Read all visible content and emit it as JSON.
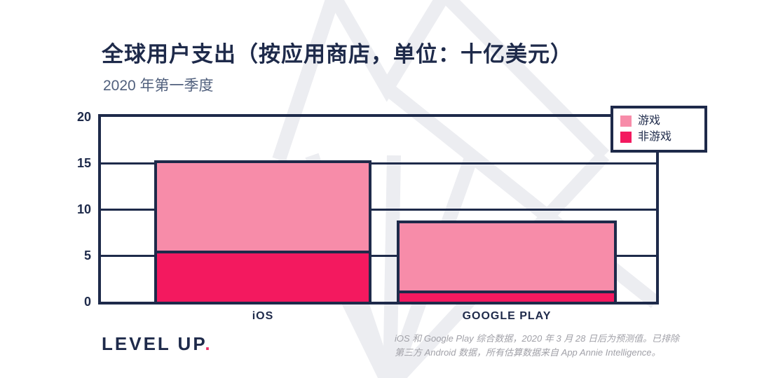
{
  "chart_data": {
    "type": "bar",
    "stacked": true,
    "title": "全球用户支出（按应用商店，单位：十亿美元）",
    "subtitle": "2020 年第一季度",
    "categories": [
      "iOS",
      "GOOGLE PLAY"
    ],
    "series": [
      {
        "name": "游戏",
        "color": "#F78CA9",
        "values": [
          9.5,
          7.3
        ]
      },
      {
        "name": "非游戏",
        "color": "#F3195F",
        "values": [
          5.5,
          1.2
        ]
      }
    ],
    "stack_order": "非游戏 bottom, 游戏 top",
    "ylim": [
      0,
      20
    ],
    "y_ticks": [
      0,
      5,
      10,
      15,
      20
    ],
    "grid": "horizontal",
    "legend_position": "top-right"
  },
  "footer": {
    "logo_text": "LEVEL UP",
    "logo_dot": ".",
    "note": "iOS 和 Google Play 综合数据，2020 年 3 月 28 日后为预测值。已排除第三方 Android 数据，所有估算数据来自 App Annie Intelligence。"
  },
  "colors": {
    "navy": "#1E2A4A",
    "games_pink": "#F78CA9",
    "nongames_red": "#F3195F",
    "watermark_gray": "#ECEDF1",
    "footnote_gray": "#A1A1A8",
    "logo_dot_pink": "#EE2D65"
  }
}
